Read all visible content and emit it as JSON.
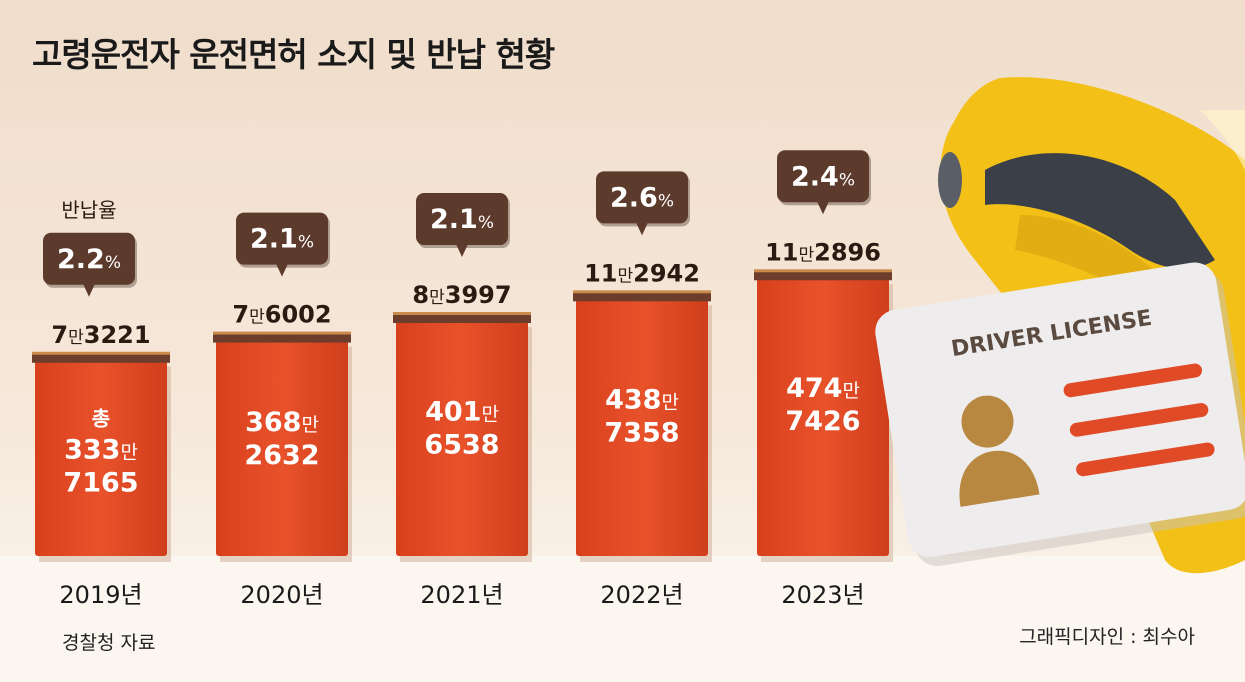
{
  "title": "고령운전자 운전면허 소지 및 반납 현황",
  "rate_label": "반납율",
  "total_prefix": "총",
  "source": "경찰청 자료",
  "credit": "그래픽디자인 : 최수아",
  "license_card": {
    "heading": "DRIVER LICENSE"
  },
  "colors": {
    "bar": "#e8522b",
    "return_strip": "#6b3d2a",
    "bubble": "#5c3a2c",
    "background": "#f3e6d9",
    "car": "#f3c018"
  },
  "icons": [
    "car-illustration",
    "driver-license-card-illustration",
    "person-silhouette-icon"
  ],
  "chart_data": {
    "type": "bar",
    "title": "고령운전자 운전면허 소지 및 반납 현황",
    "categories": [
      "2019년",
      "2020년",
      "2021년",
      "2022년",
      "2023년"
    ],
    "series": [
      {
        "name": "총",
        "values": [
          3337165,
          3682632,
          4016538,
          4387358,
          4747426
        ],
        "labels": [
          [
            "333",
            "7165"
          ],
          [
            "368",
            "2632"
          ],
          [
            "401",
            "6538"
          ],
          [
            "438",
            "7358"
          ],
          [
            "474",
            "7426"
          ]
        ]
      },
      {
        "name": "반납",
        "values": [
          73221,
          76002,
          83997,
          112942,
          112896
        ],
        "labels": [
          [
            "7",
            "3221"
          ],
          [
            "7",
            "6002"
          ],
          [
            "8",
            "3997"
          ],
          [
            "11",
            "2942"
          ],
          [
            "11",
            "2896"
          ]
        ]
      },
      {
        "name": "반납율",
        "unit": "%",
        "values": [
          2.2,
          2.1,
          2.1,
          2.6,
          2.4
        ]
      }
    ],
    "unit_word": "만",
    "ylim": [
      0,
      5000000
    ]
  }
}
